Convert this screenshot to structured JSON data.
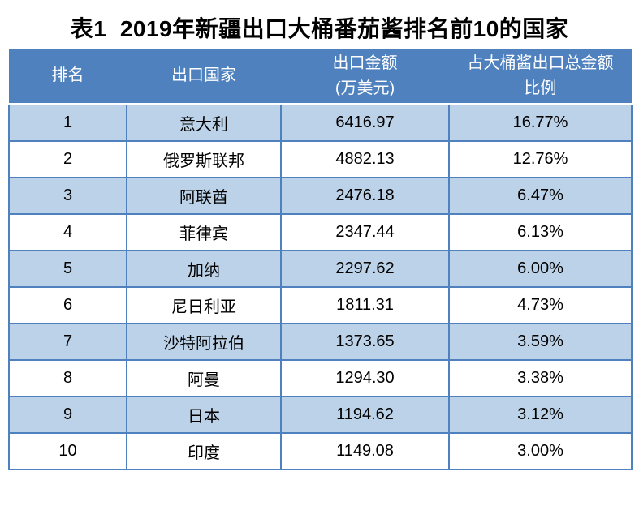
{
  "page": {
    "title": "表1  2019年新疆出口大桶番茄酱排名前10的国家"
  },
  "table": {
    "columns": [
      {
        "key": "rank",
        "lines": [
          "排名"
        ]
      },
      {
        "key": "country",
        "lines": [
          "出口国家"
        ]
      },
      {
        "key": "amount",
        "lines": [
          "出口金额",
          "(万美元)"
        ]
      },
      {
        "key": "share",
        "lines": [
          "占大桶酱出口总金额",
          "比例"
        ]
      }
    ],
    "rows": [
      {
        "rank": "1",
        "country": "意大利",
        "amount": "6416.97",
        "share": "16.77%"
      },
      {
        "rank": "2",
        "country": "俄罗斯联邦",
        "amount": "4882.13",
        "share": "12.76%"
      },
      {
        "rank": "3",
        "country": "阿联酋",
        "amount": "2476.18",
        "share": "6.47%"
      },
      {
        "rank": "4",
        "country": "菲律宾",
        "amount": "2347.44",
        "share": "6.13%"
      },
      {
        "rank": "5",
        "country": "加纳",
        "amount": "2297.62",
        "share": "6.00%"
      },
      {
        "rank": "6",
        "country": "尼日利亚",
        "amount": "1811.31",
        "share": "4.73%"
      },
      {
        "rank": "7",
        "country": "沙特阿拉伯",
        "amount": "1373.65",
        "share": "3.59%"
      },
      {
        "rank": "8",
        "country": "阿曼",
        "amount": "1294.30",
        "share": "3.38%"
      },
      {
        "rank": "9",
        "country": "日本",
        "amount": "1194.62",
        "share": "3.12%"
      },
      {
        "rank": "10",
        "country": "印度",
        "amount": "1149.08",
        "share": "3.00%"
      }
    ],
    "colors": {
      "header_bg": "#4E81BD",
      "header_text": "#FFFFFF",
      "alt_row_bg": "#BCD2E8",
      "row_bg": "#FFFFFF",
      "border": "#4E81BD",
      "body_text": "#000000"
    }
  },
  "chart_data": {
    "type": "table",
    "title": "表1  2019年新疆出口大桶番茄酱排名前10的国家",
    "columns": [
      "排名",
      "出口国家",
      "出口金额(万美元)",
      "占大桶酱出口总金额比例"
    ],
    "categories": [
      "意大利",
      "俄罗斯联邦",
      "阿联酋",
      "菲律宾",
      "加纳",
      "尼日利亚",
      "沙特阿拉伯",
      "阿曼",
      "日本",
      "印度"
    ],
    "series": [
      {
        "name": "出口金额(万美元)",
        "values": [
          6416.97,
          4882.13,
          2476.18,
          2347.44,
          2297.62,
          1811.31,
          1373.65,
          1294.3,
          1194.62,
          1149.08
        ]
      },
      {
        "name": "占大桶酱出口总金额比例(%)",
        "values": [
          16.77,
          12.76,
          6.47,
          6.13,
          6.0,
          4.73,
          3.59,
          3.38,
          3.12,
          3.0
        ]
      }
    ]
  }
}
